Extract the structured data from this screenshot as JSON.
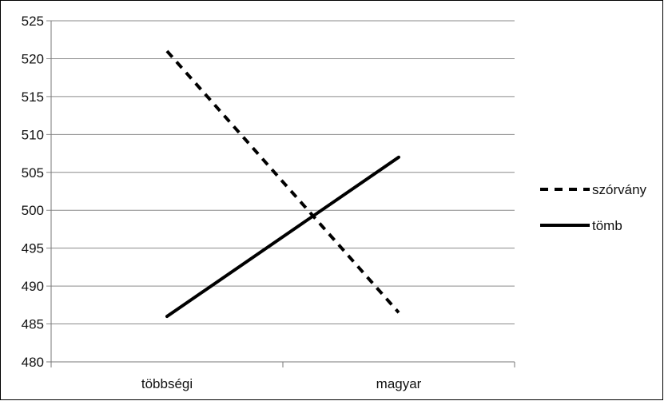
{
  "chart_data": {
    "type": "line",
    "categories": [
      "többségi",
      "magyar"
    ],
    "ylim": [
      480,
      525
    ],
    "yticks": [
      480,
      485,
      490,
      495,
      500,
      505,
      510,
      515,
      520,
      525
    ],
    "grid": true,
    "legend_position": "right",
    "series": [
      {
        "name": "szórvány",
        "values": [
          521,
          486.5
        ],
        "style": "dashed",
        "color": "#000000"
      },
      {
        "name": "tömb",
        "values": [
          486,
          507
        ],
        "style": "solid",
        "color": "#000000"
      }
    ]
  }
}
